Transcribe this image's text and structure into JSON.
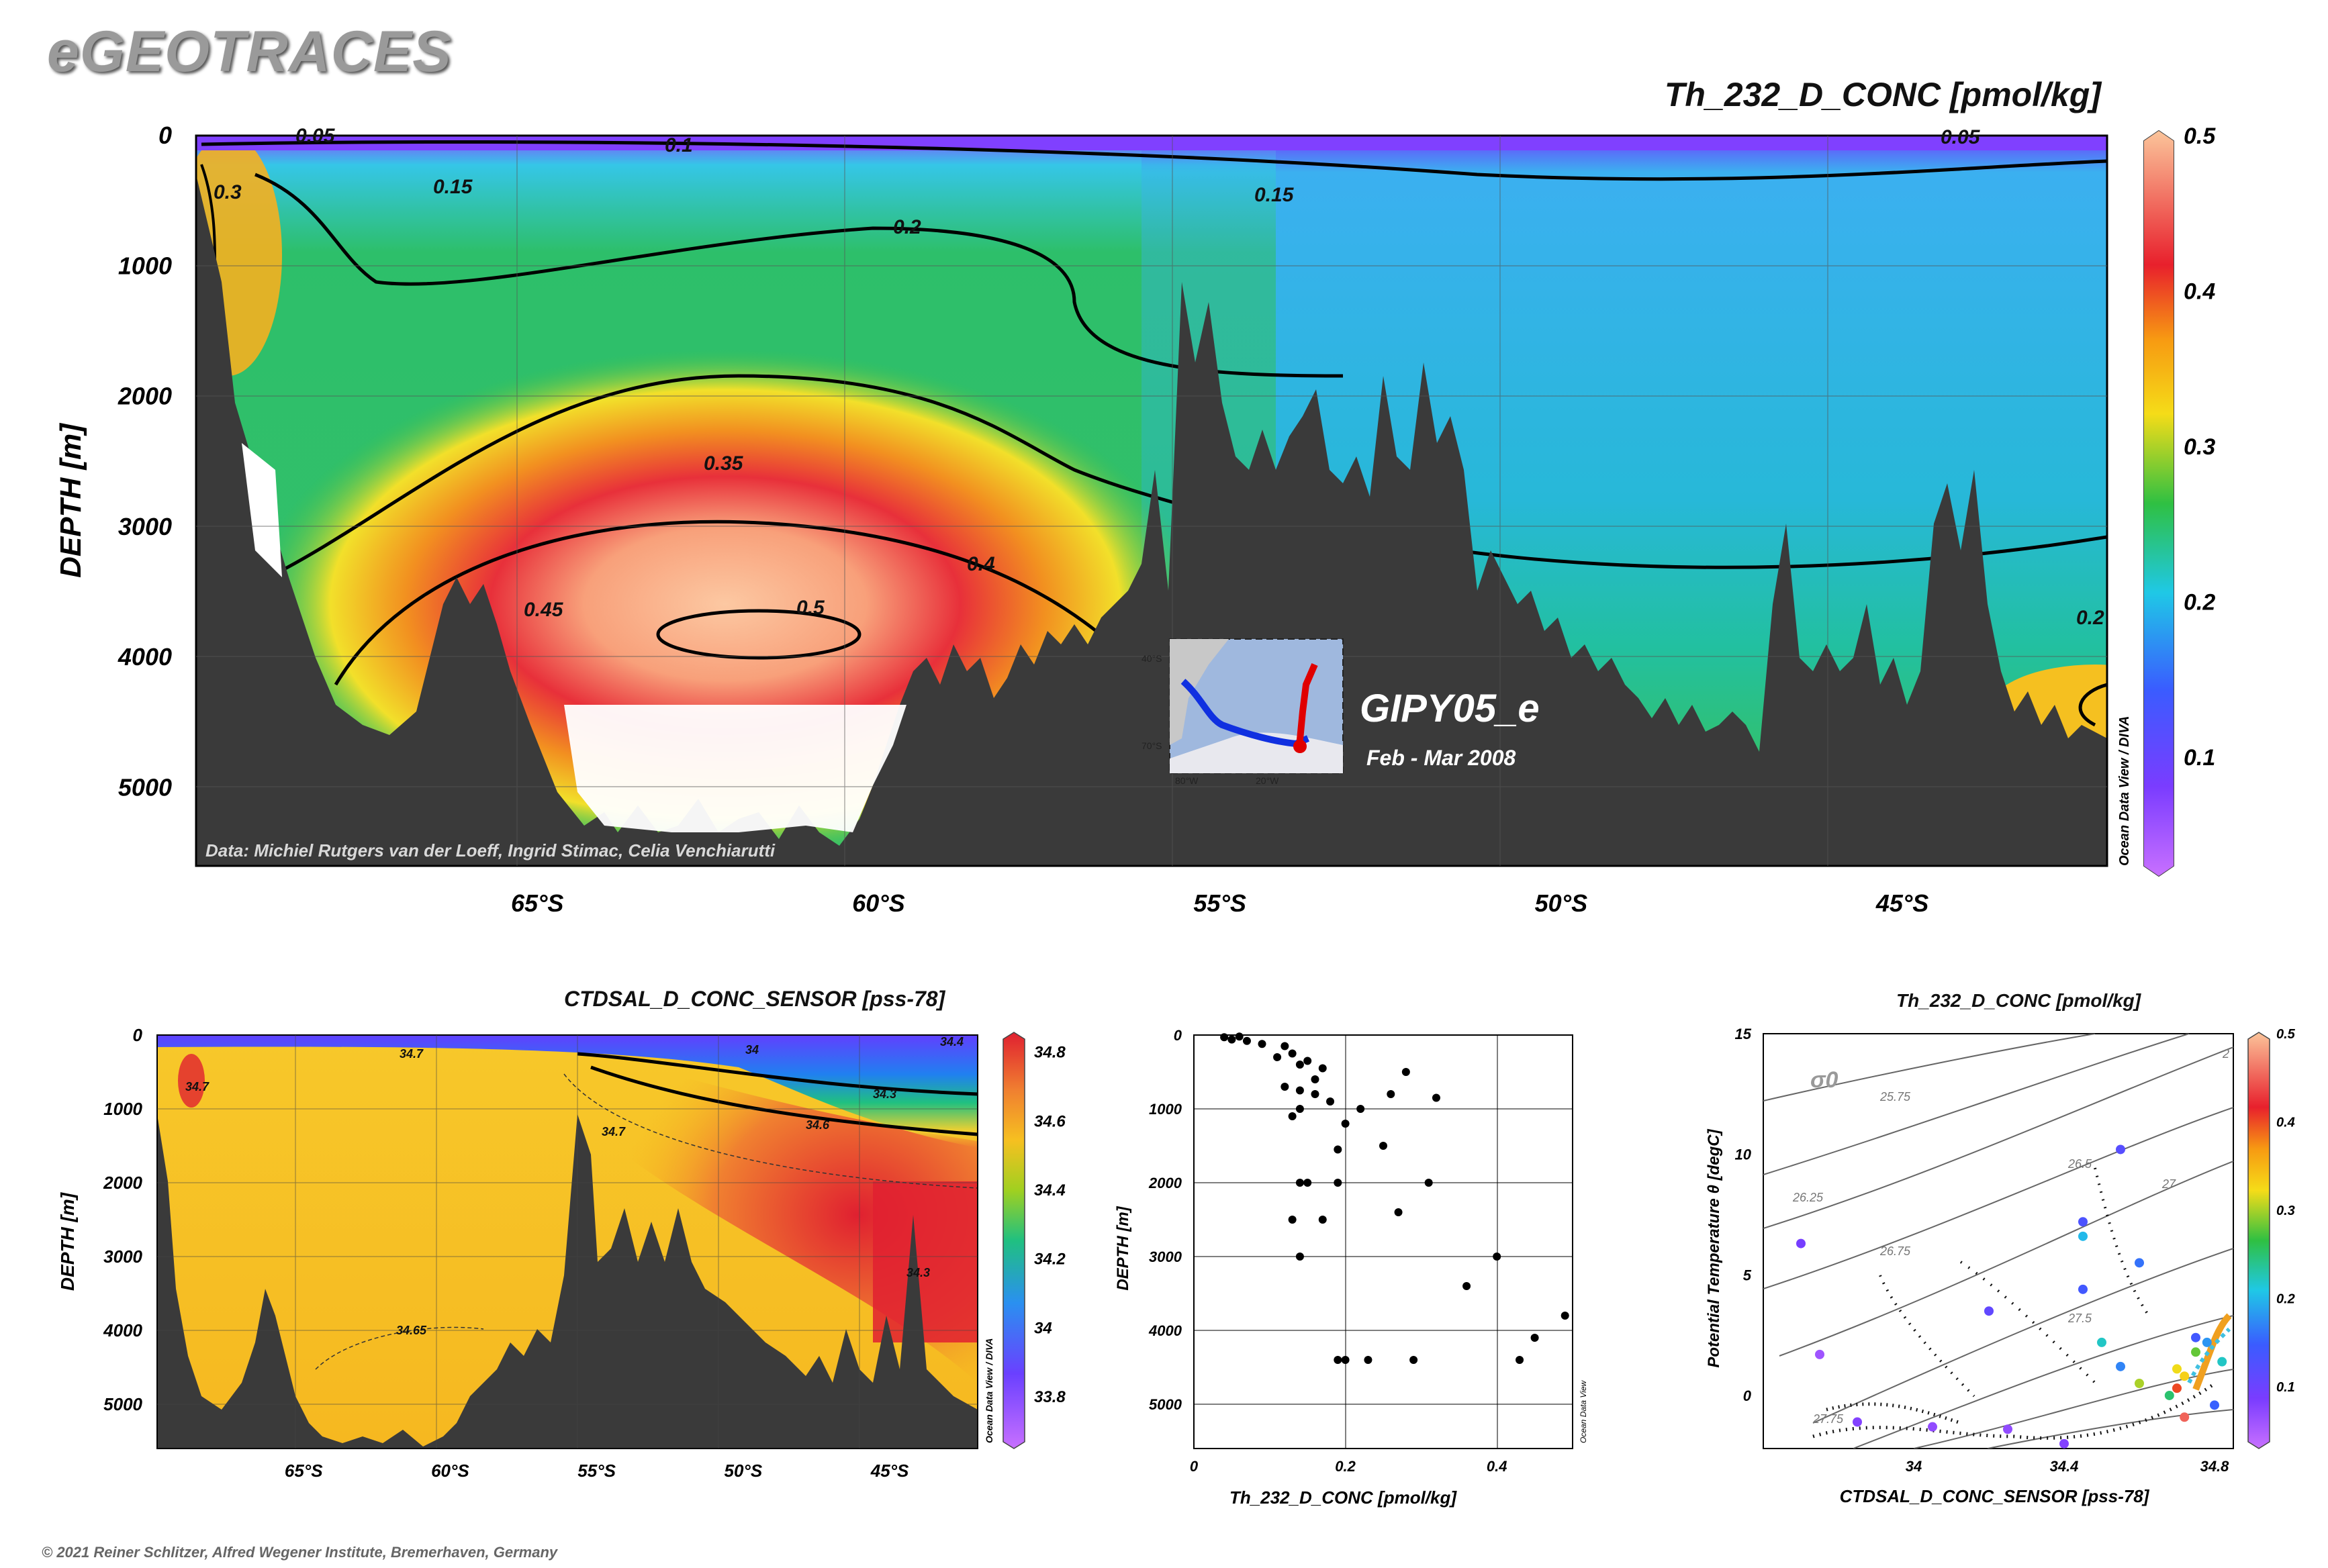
{
  "logo": "eGEOTRACES",
  "footer": "© 2021 Reiner Schlitzer, Alfred Wegener Institute, Bremerhaven, Germany",
  "colors": {
    "bathymetry": "#3a3a3a",
    "section_line_blue": "#1030e0",
    "section_line_red": "#e00000"
  },
  "main_section": {
    "title": "Th_232_D_CONC [pmol/kg]",
    "ylabel": "DEPTH [m]",
    "y_ticks": [
      "0",
      "1000",
      "2000",
      "3000",
      "4000",
      "5000"
    ],
    "x_ticks": [
      "65°S",
      "60°S",
      "55°S",
      "50°S",
      "45°S"
    ],
    "colorbar_ticks": [
      "0.5",
      "0.4",
      "0.3",
      "0.2",
      "0.1"
    ],
    "contour_labels": [
      "0.05",
      "0.1",
      "0.05",
      "0.15",
      "0.15",
      "0.2",
      "0.3",
      "0.35",
      "0.4",
      "0.45",
      "0.5",
      "0.2"
    ],
    "credit": "Data: Michiel Rutgers van der Loeff, Ingrid Stimac, Celia Venchiarutti",
    "cruise": "GIPY05_e",
    "period": "Feb - Mar 2008",
    "watermark": "Ocean Data View / DIVA",
    "map_labels": [
      "40°S",
      "70°S",
      "80°W",
      "20°W"
    ]
  },
  "salinity_section": {
    "title": "CTDSAL_D_CONC_SENSOR [pss-78]",
    "ylabel": "DEPTH [m]",
    "y_ticks": [
      "0",
      "1000",
      "2000",
      "3000",
      "4000",
      "5000"
    ],
    "x_ticks": [
      "65°S",
      "60°S",
      "55°S",
      "50°S",
      "45°S"
    ],
    "colorbar_ticks": [
      "34.8",
      "34.6",
      "34.4",
      "34.2",
      "34",
      "33.8"
    ],
    "contour_labels": [
      "34.7",
      "34.7",
      "34.65",
      "34.7",
      "34.6",
      "34.3",
      "34",
      "34.4",
      "34.3"
    ],
    "watermark": "Ocean Data View / DIVA"
  },
  "scatter_profile": {
    "xlabel": "Th_232_D_CONC [pmol/kg]",
    "ylabel": "DEPTH [m]",
    "x_ticks": [
      "0",
      "0.2",
      "0.4"
    ],
    "y_ticks": [
      "0",
      "1000",
      "2000",
      "3000",
      "4000",
      "5000"
    ],
    "watermark": "Ocean Data View"
  },
  "ts_diagram": {
    "title": "Th_232_D_CONC [pmol/kg]",
    "xlabel": "CTDSAL_D_CONC_SENSOR [pss-78]",
    "ylabel": "Potential Temperature θ [degC]",
    "x_ticks": [
      "34",
      "34.4",
      "34.8"
    ],
    "y_ticks": [
      "15",
      "10",
      "5",
      "0"
    ],
    "sigma_label": "σ0",
    "isopycnal_labels": [
      "25.75",
      "26.25",
      "26.5",
      "26.75",
      "27",
      "27.5",
      "27.75",
      "2"
    ],
    "colorbar_ticks": [
      "0.5",
      "0.4",
      "0.3",
      "0.2",
      "0.1"
    ]
  },
  "chart_data": [
    {
      "type": "heatmap",
      "title": "Th_232_D_CONC [pmol/kg]",
      "xlabel": "",
      "ylabel": "DEPTH [m]",
      "xlim": [
        -70,
        -42
      ],
      "ylim": [
        5600,
        0
      ],
      "colorbar_range": [
        0.03,
        0.5
      ],
      "grid": true
    },
    {
      "type": "heatmap",
      "title": "CTDSAL_D_CONC_SENSOR [pss-78]",
      "xlabel": "",
      "ylabel": "DEPTH [m]",
      "xlim": [
        -70,
        -42
      ],
      "ylim": [
        5600,
        0
      ],
      "colorbar_range": [
        33.65,
        34.85
      ],
      "grid": true
    },
    {
      "type": "scatter",
      "xlabel": "Th_232_D_CONC [pmol/kg]",
      "ylabel": "DEPTH [m]",
      "xlim": [
        0,
        0.5
      ],
      "ylim": [
        5600,
        0
      ],
      "grid": true,
      "x": [
        0.04,
        0.05,
        0.06,
        0.07,
        0.09,
        0.12,
        0.11,
        0.13,
        0.14,
        0.15,
        0.17,
        0.16,
        0.12,
        0.14,
        0.16,
        0.18,
        0.14,
        0.13,
        0.22,
        0.26,
        0.28,
        0.32,
        0.2,
        0.25,
        0.19,
        0.14,
        0.15,
        0.13,
        0.19,
        0.31,
        0.27,
        0.17,
        0.14,
        0.23,
        0.19,
        0.36,
        0.4,
        0.49,
        0.45,
        0.43,
        0.29,
        0.2
      ],
      "y": [
        30,
        60,
        20,
        80,
        120,
        150,
        300,
        250,
        400,
        350,
        450,
        600,
        700,
        750,
        800,
        900,
        1000,
        1100,
        1000,
        800,
        500,
        850,
        1200,
        1500,
        1550,
        2000,
        2000,
        2500,
        2000,
        2000,
        2400,
        2500,
        3000,
        4400,
        4400,
        3400,
        3000,
        3800,
        4100,
        4400,
        4400,
        4400
      ]
    },
    {
      "type": "scatter",
      "title": "Th_232_D_CONC [pmol/kg]",
      "xlabel": "CTDSAL_D_CONC_SENSOR [pss-78]",
      "ylabel": "Potential Temperature θ [degC]",
      "xlim": [
        33.6,
        34.85
      ],
      "ylim": [
        -2.2,
        15
      ],
      "colorbar_range": [
        0.03,
        0.5
      ],
      "grid": false,
      "x": [
        33.7,
        33.75,
        34.55,
        34.45,
        34.6,
        34.2,
        34.45,
        34.45,
        34.5,
        34.55,
        34.6,
        34.68,
        34.7,
        34.72,
        34.75,
        34.78,
        34.8,
        34.82,
        34.75,
        33.85,
        34.05,
        34.25,
        34.4,
        34.7,
        34.72
      ],
      "y": [
        6.3,
        1.7,
        10.2,
        7.2,
        5.5,
        3.5,
        4.4,
        6.6,
        2.2,
        1.2,
        0.5,
        0,
        0.3,
        0.8,
        1.8,
        2.2,
        -0.4,
        1.4,
        2.4,
        -1.1,
        -1.3,
        -1.4,
        -2,
        1.1,
        -0.9
      ],
      "values": [
        0.09,
        0.06,
        0.12,
        0.13,
        0.16,
        0.11,
        0.14,
        0.2,
        0.22,
        0.17,
        0.3,
        0.25,
        0.4,
        0.33,
        0.28,
        0.18,
        0.15,
        0.22,
        0.14,
        0.08,
        0.07,
        0.07,
        0.08,
        0.32,
        0.45
      ]
    }
  ]
}
